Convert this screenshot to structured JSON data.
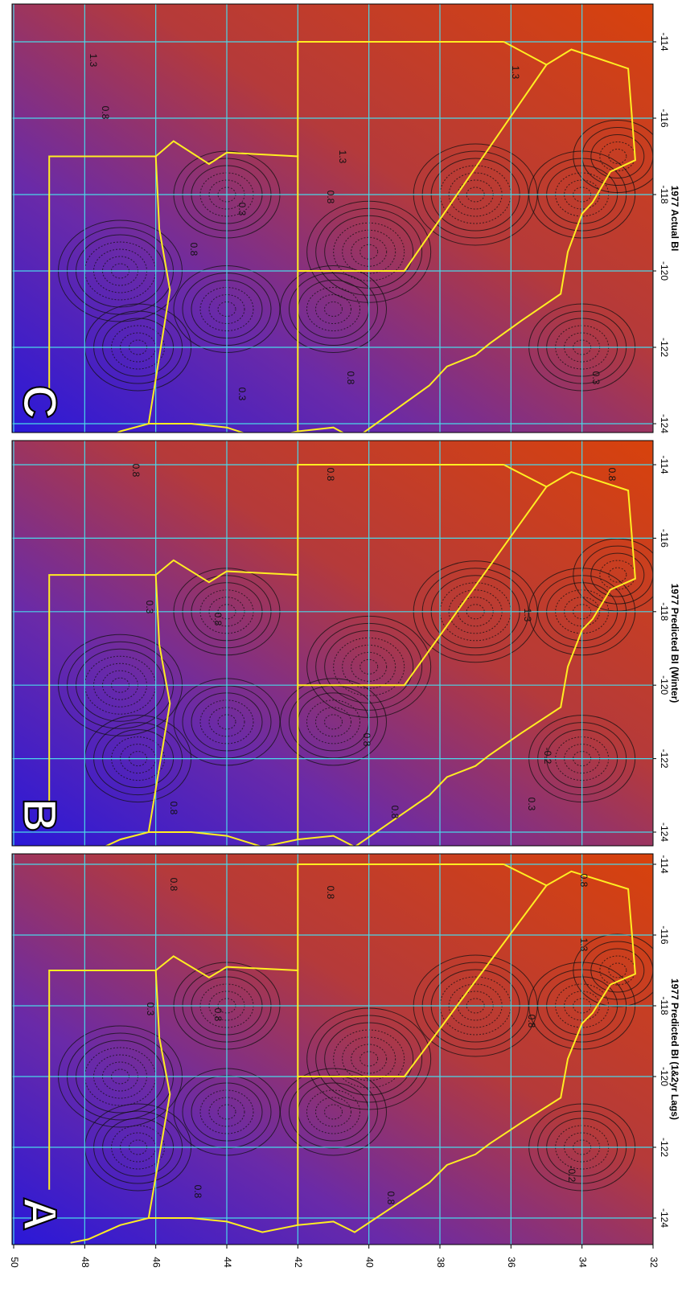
{
  "figure": {
    "panels": [
      {
        "letter": "A",
        "title": "1977 Predicted BI (1&2yr Lags)",
        "contour_labels": [
          "0.8",
          "0.3",
          "0.8",
          "0.8",
          "0.8",
          "0.8",
          "0.8",
          "1.3",
          "-0.2",
          "0.8"
        ]
      },
      {
        "letter": "B",
        "title": "1977 Predicted BI (Winter)",
        "contour_labels": [
          "0.8",
          "0.3",
          "0.8",
          "0.8",
          "0.8",
          "0.8",
          "0.8",
          "1.3",
          "0.8",
          "-0.2",
          "0.3"
        ]
      },
      {
        "letter": "C",
        "title": "1977 Actual BI",
        "contour_labels": [
          "1.3",
          "0.8",
          "0.8",
          "0.3",
          "0.3",
          "0.8",
          "1.3",
          "0.8",
          "1.3",
          "0.3"
        ]
      }
    ],
    "lat_axis": {
      "ticks": [
        50,
        48,
        46,
        44,
        42,
        40,
        38,
        36,
        34,
        32
      ]
    },
    "lon_axis": {
      "ticks": [
        -124,
        -122,
        -120,
        -118,
        -116,
        -114
      ]
    }
  }
}
